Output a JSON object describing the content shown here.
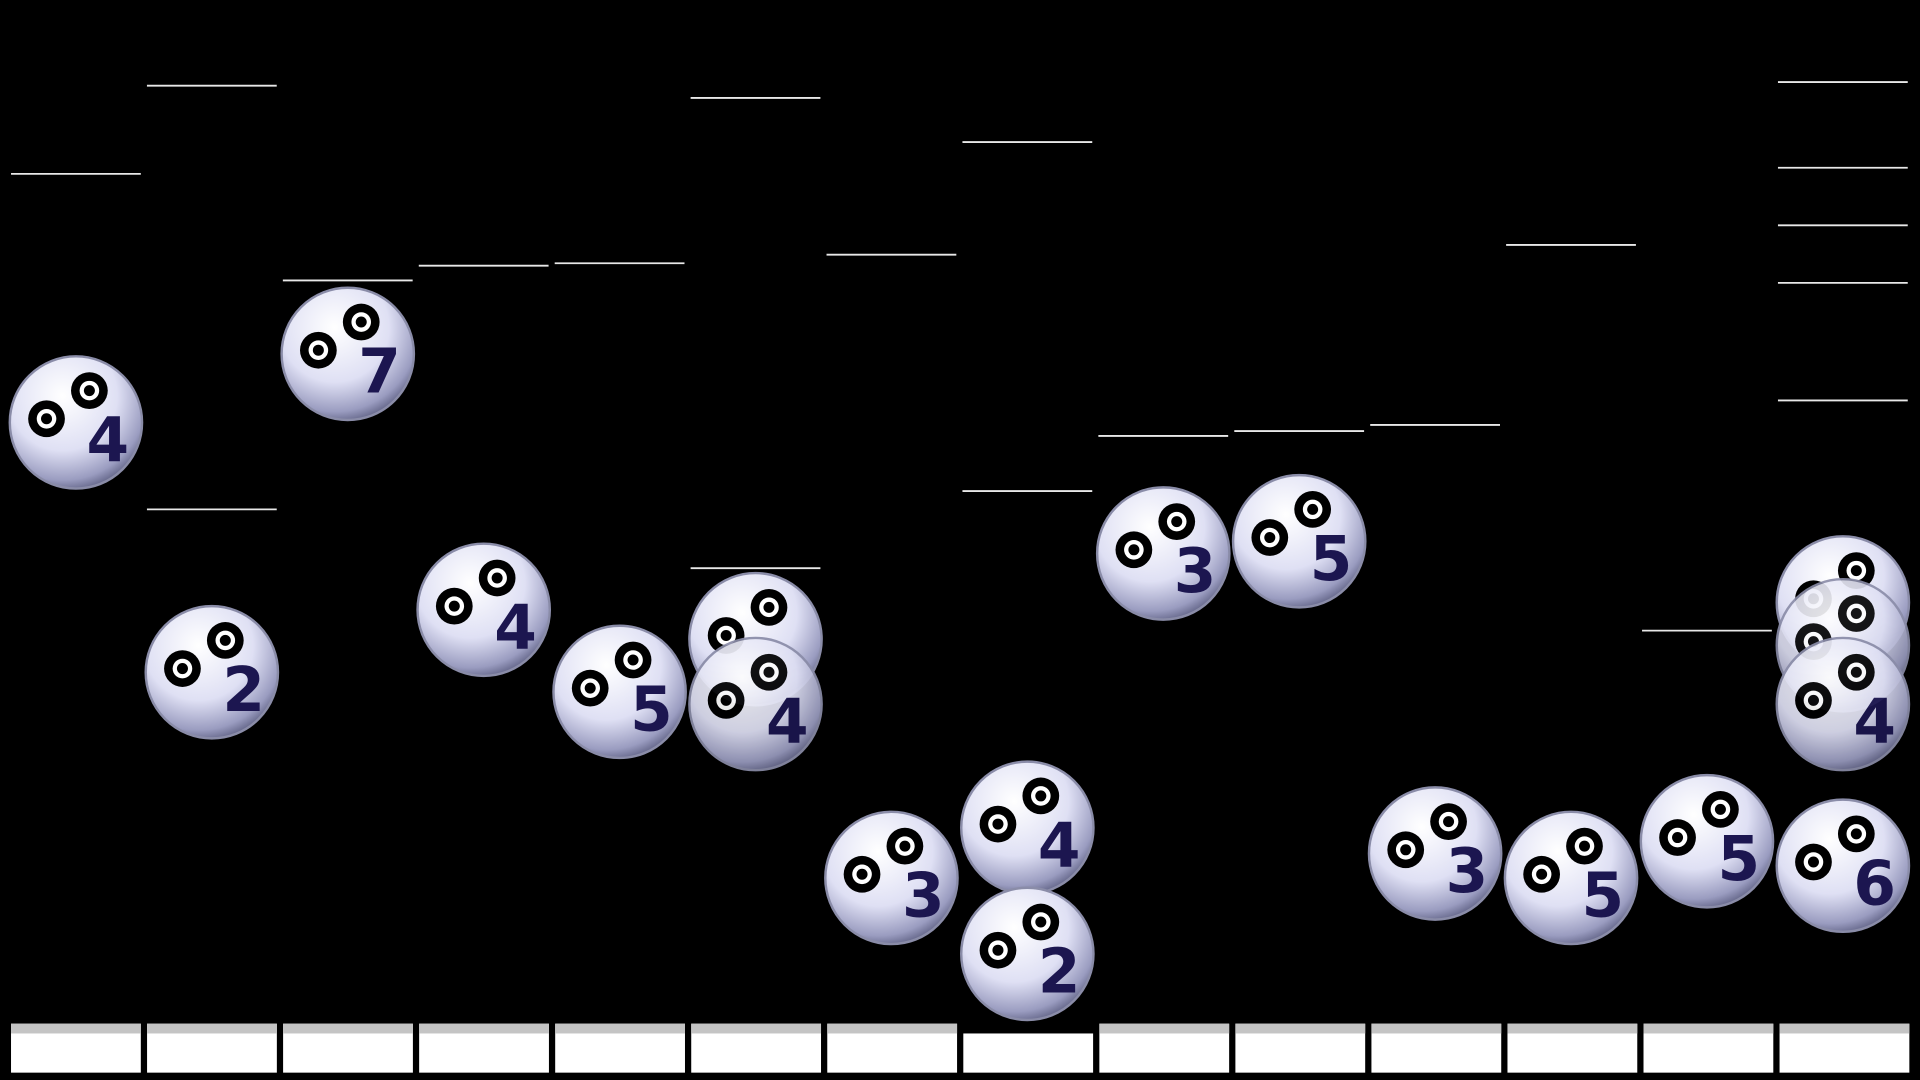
{
  "balls": [
    {
      "label": 4
    },
    {
      "label": 2
    },
    {
      "label": 7
    },
    {
      "label": 4
    },
    {
      "label": 5
    },
    {
      "label": 4
    },
    {
      "label": 3
    },
    {
      "label": 4
    },
    {
      "label": 2
    },
    {
      "label": 3
    },
    {
      "label": 5
    },
    {
      "label": 3
    },
    {
      "label": 5
    },
    {
      "label": 5
    },
    {
      "label": 4
    },
    {
      "label": 6
    }
  ]
}
